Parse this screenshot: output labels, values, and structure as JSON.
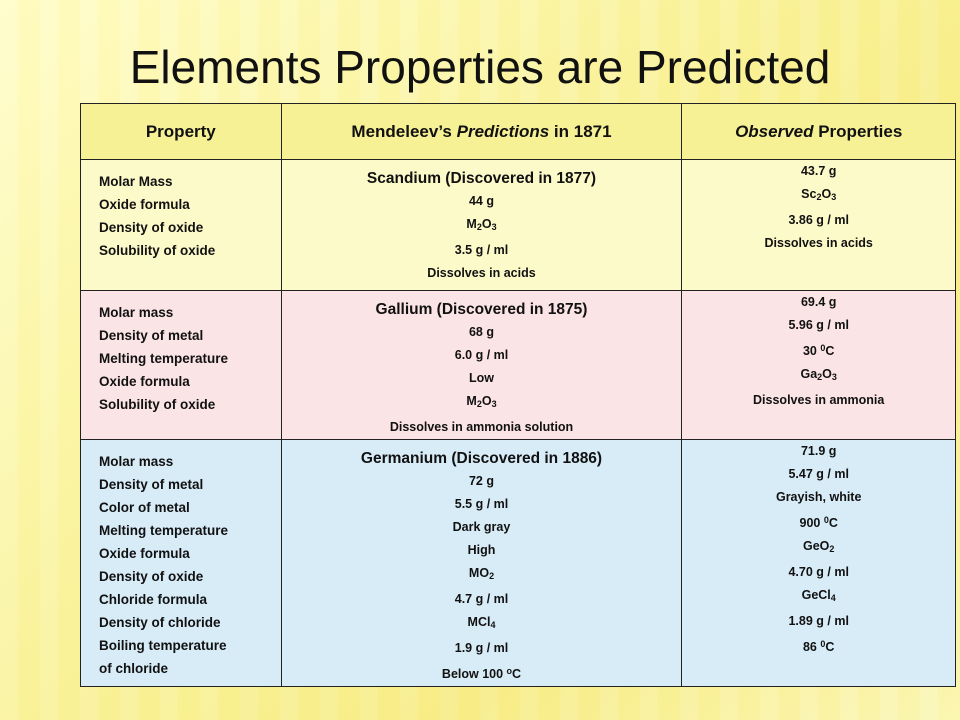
{
  "title": "Elements Properties are Predicted",
  "header": {
    "property": "Property",
    "predictions_pre": "Mendeleev’s ",
    "predictions_em": "Predictions",
    "predictions_post": " in 1871",
    "observed_em": "Observed",
    "observed_post": " Properties"
  },
  "rows": [
    {
      "properties": [
        "Molar Mass",
        "Oxide formula",
        "Density of oxide",
        "Solubility of oxide"
      ],
      "element": "Scandium (Discovered in 1877)",
      "predicted": [
        "44 g",
        "M2O3",
        "3.5 g / ml",
        "Dissolves in acids"
      ],
      "observed": [
        "43.7 g",
        "Sc2O3",
        "3.86 g / ml",
        "Dissolves in acids"
      ]
    },
    {
      "properties": [
        "Molar mass",
        "Density of metal",
        "Melting temperature",
        "Oxide formula",
        "Solubility of oxide"
      ],
      "element": "Gallium (Discovered in 1875)",
      "predicted": [
        "68 g",
        "6.0 g / ml",
        "Low",
        "M2O3",
        "Dissolves in ammonia solution"
      ],
      "observed": [
        "69.4 g",
        "5.96 g / ml",
        "30 0C",
        "Ga2O3",
        "Dissolves in ammonia"
      ]
    },
    {
      "properties": [
        "Molar mass",
        "Density of metal",
        "Color of metal",
        "Melting temperature",
        "Oxide formula",
        "Density of oxide",
        "Chloride formula",
        "Density of chloride",
        "Boiling temperature",
        "of chloride"
      ],
      "element": "Germanium (Discovered in 1886)",
      "predicted": [
        "72 g",
        "5.5 g / ml",
        "Dark gray",
        "High",
        "MO2",
        "4.7 g / ml",
        "MCl4",
        "1.9 g / ml",
        "Below 100 oC"
      ],
      "observed": [
        "71.9 g",
        "5.47 g / ml",
        "Grayish, white",
        "900 0C",
        "GeO2",
        "4.70 g / ml",
        "GeCl4",
        "1.89 g / ml",
        "86 0C"
      ]
    }
  ],
  "colors": {
    "header_bg": "#f7f195",
    "row1_bg": "#fdfac9",
    "row2_bg": "#fbe4e6",
    "row3_bg": "#d8ecf8"
  }
}
